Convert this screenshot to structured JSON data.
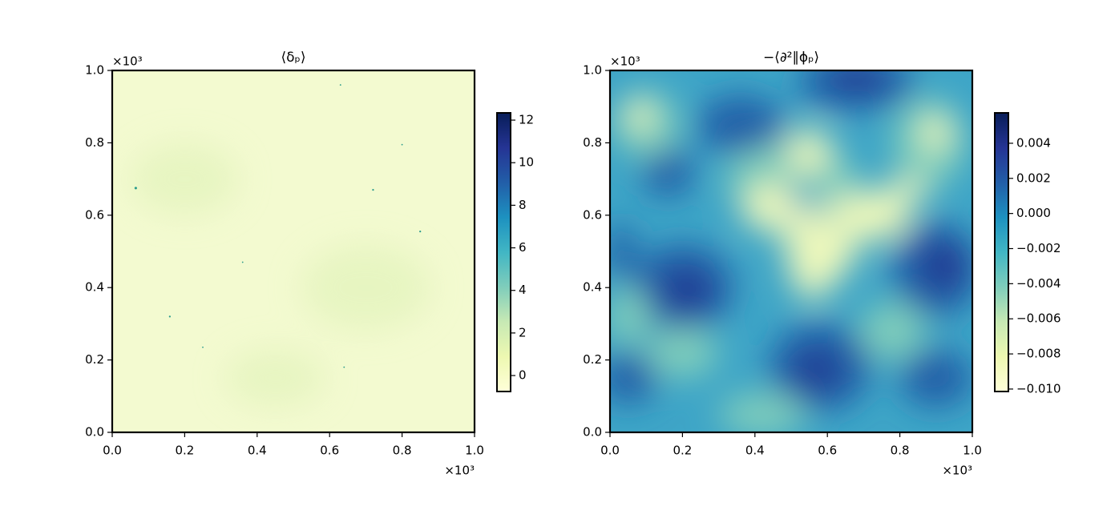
{
  "chart_data": [
    {
      "type": "heatmap",
      "title": "⟨δₚ⟩",
      "xlim": [
        0,
        1
      ],
      "ylim": [
        0,
        1
      ],
      "xticks": [
        {
          "value": 0,
          "label": "0.0"
        },
        0.2,
        0.4,
        0.6,
        0.8,
        {
          "value": 1,
          "label": "1.0"
        }
      ],
      "yticks": [
        {
          "value": 0,
          "label": "0.0"
        },
        0.2,
        0.4,
        0.6,
        0.8,
        {
          "value": 1,
          "label": "1.0"
        }
      ],
      "x_offset_label": "×10³",
      "y_offset_label": "×10³",
      "colormap": "YlGnBu",
      "colorbar": {
        "lim": [
          -0.75,
          12.34
        ],
        "ticks": [
          0,
          2,
          4,
          6,
          8,
          10,
          12
        ]
      }
    },
    {
      "type": "heatmap",
      "title": "−⟨∂²∥ϕₚ⟩",
      "xlim": [
        0,
        1
      ],
      "ylim": [
        0,
        1
      ],
      "xticks": [
        {
          "value": 0,
          "label": "0.0"
        },
        0.2,
        0.4,
        0.6,
        0.8,
        {
          "value": 1,
          "label": "1.0"
        }
      ],
      "yticks": [
        {
          "value": 0,
          "label": "0.0"
        },
        0.2,
        0.4,
        0.6,
        0.8,
        {
          "value": 1,
          "label": "1.0"
        }
      ],
      "x_offset_label": "×10³",
      "y_offset_label": "×10³",
      "colormap": "YlGnBu",
      "colorbar": {
        "lim": [
          -0.01014,
          0.00573
        ],
        "ticks": [
          {
            "value": -0.01,
            "label": "−0.010"
          },
          {
            "value": -0.008,
            "label": "−0.008"
          },
          {
            "value": -0.006,
            "label": "−0.006"
          },
          {
            "value": -0.004,
            "label": "−0.004"
          },
          {
            "value": -0.002,
            "label": "−0.002"
          },
          {
            "value": 0,
            "label": "0.000"
          },
          {
            "value": 0.002,
            "label": "0.002"
          },
          {
            "value": 0.004,
            "label": "0.004"
          }
        ]
      }
    }
  ]
}
